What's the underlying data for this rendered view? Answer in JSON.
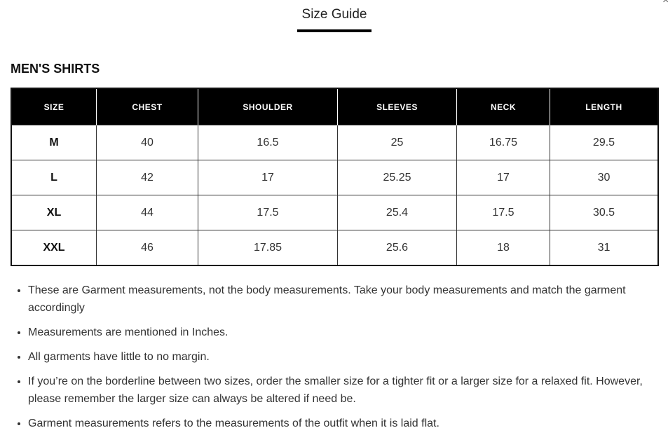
{
  "tab": {
    "label": "Size Guide"
  },
  "close_icon": "close-icon",
  "section_title": "MEN'S SHIRTS",
  "table": {
    "headers": [
      "SIZE",
      "CHEST",
      "SHOULDER",
      "SLEEVES",
      "NECK",
      "LENGTH"
    ],
    "rows": [
      [
        "M",
        "40",
        "16.5",
        "25",
        "16.75",
        "29.5"
      ],
      [
        "L",
        "42",
        "17",
        "25.25",
        "17",
        "30"
      ],
      [
        "XL",
        "44",
        "17.5",
        "25.4",
        "17.5",
        "30.5"
      ],
      [
        "XXL",
        "46",
        "17.85",
        "25.6",
        "18",
        "31"
      ]
    ]
  },
  "notes": [
    "These are Garment measurements, not the body measurements. Take your body measurements and match the garment accordingly",
    "Measurements are mentioned in Inches.",
    "All garments have little to no margin.",
    "If you’re on the borderline between two sizes, order the smaller size for a tighter fit or a larger size for a relaxed fit. However, please remember the larger size can always be altered if need be.",
    "Garment measurements refers to the measurements of the outfit when it is laid flat."
  ]
}
